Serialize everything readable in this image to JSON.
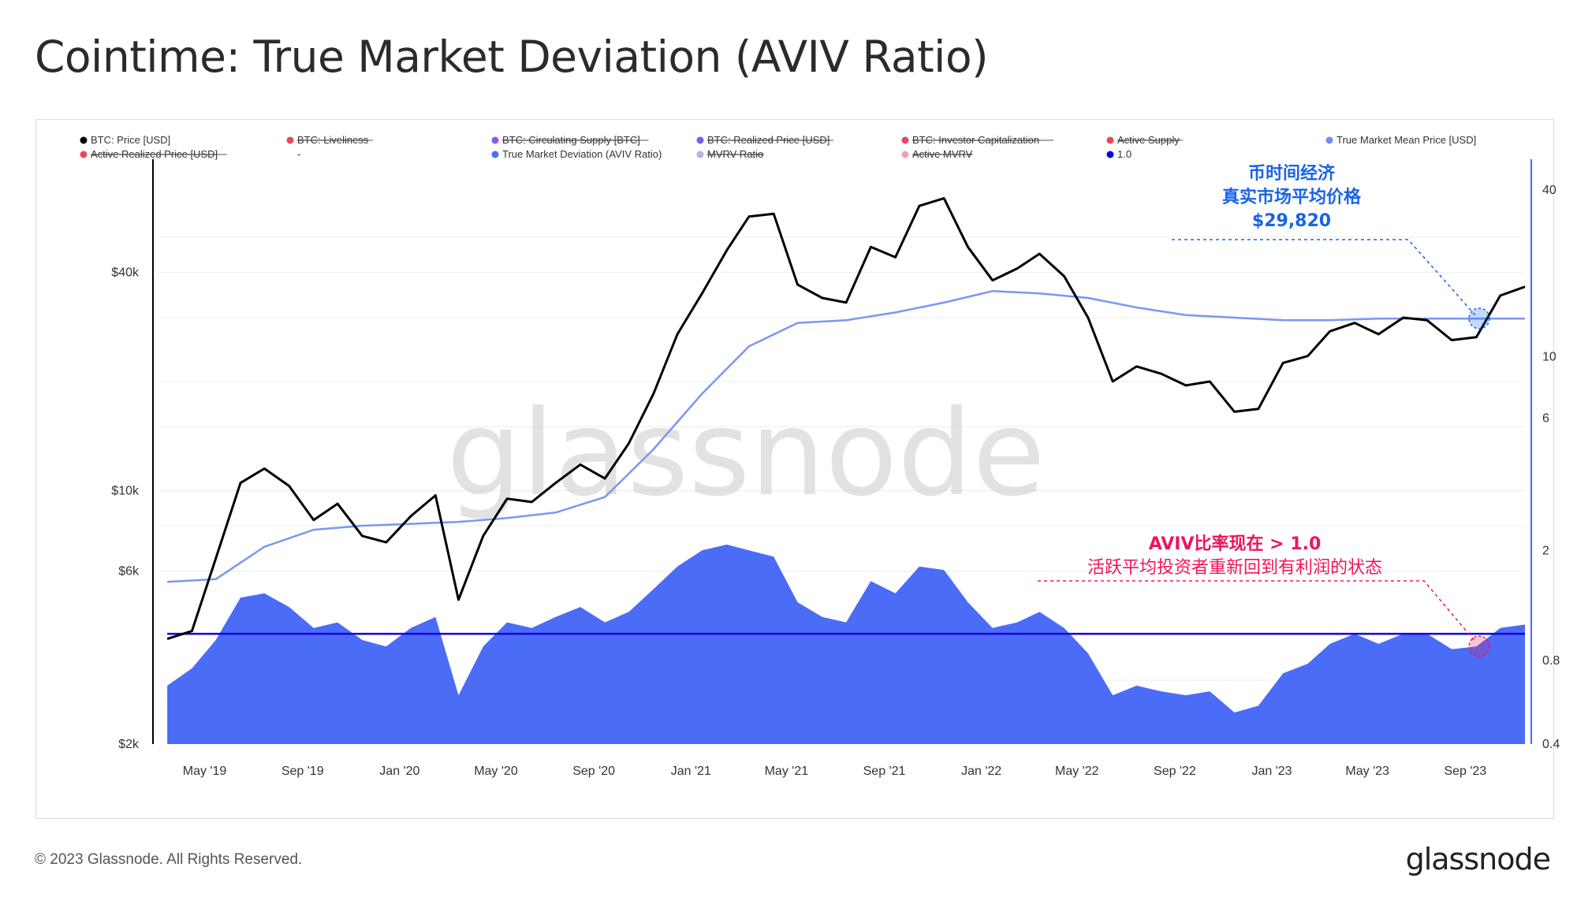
{
  "title": "Cointime: True Market Deviation (AVIV Ratio)",
  "footer": {
    "copyright": "© 2023 Glassnode. All Rights Reserved.",
    "logo": "glassnode"
  },
  "watermark": "glassnode",
  "legend": [
    {
      "label": "BTC: Price [USD]",
      "color": "#000000",
      "struck": false
    },
    {
      "label": "BTC: Liveliness",
      "color": "#e8485c",
      "struck": true
    },
    {
      "label": "BTC: Circulating Supply [BTC]",
      "color": "#8a5cf0",
      "struck": true
    },
    {
      "label": "BTC: Realized Price [USD]",
      "color": "#7a5cf0",
      "struck": true
    },
    {
      "label": "BTC: Investor Capitalization",
      "color": "#e8485c",
      "struck": true
    },
    {
      "label": "Active Supply",
      "color": "#e8485c",
      "struck": true
    },
    {
      "label": "True Market Mean Price [USD]",
      "color": "#6f8ff5",
      "struck": false
    },
    {
      "label": "Active Realized Price [USD]",
      "color": "#e8485c",
      "struck": true
    },
    {
      "label": "-",
      "color": "",
      "struck": false
    },
    {
      "label": "True Market Deviation (AVIV Ratio)",
      "color": "#4f6ff5",
      "struck": false
    },
    {
      "label": "MVRV Ratio",
      "color": "#b8b0f0",
      "struck": true
    },
    {
      "label": "Active MVRV",
      "color": "#f0a0b0",
      "struck": true
    },
    {
      "label": "1.0",
      "color": "#0a00e0",
      "struck": false
    }
  ],
  "annotations": {
    "blue": [
      "币时间经济",
      "真实市场平均价格",
      "$29,820"
    ],
    "pink": [
      "AVIV比率现在 > 1.0",
      "活跃平均投资者重新回到有利润的状态"
    ]
  },
  "colors": {
    "price": "#000000",
    "tmmp": "#7b96f5",
    "aviv": "#4a6cf7",
    "one_line": "#1800d8",
    "anno_blue": "#1a63e6",
    "anno_pink": "#f0145a"
  },
  "chart_data": {
    "type": "line",
    "title": "Cointime: True Market Deviation (AVIV Ratio)",
    "x_range": [
      "2019-03-01",
      "2023-11-15"
    ],
    "x_ticks": [
      "May '19",
      "Sep '19",
      "Jan '20",
      "May '20",
      "Sep '20",
      "Jan '21",
      "May '21",
      "Sep '21",
      "Jan '22",
      "May '22",
      "Sep '22",
      "Jan '23",
      "May '23",
      "Sep '23"
    ],
    "y_left": {
      "scale": "log",
      "ticks": [
        "$2k",
        "$6k",
        "$10k",
        "$40k"
      ],
      "range": [
        2000,
        80000
      ]
    },
    "y_right": {
      "scale": "log",
      "ticks": [
        "0.4",
        "0.8",
        "2",
        "6",
        "10",
        "40"
      ],
      "range": [
        0.4,
        50
      ]
    },
    "series": [
      {
        "name": "BTC: Price [USD]",
        "axis": "left",
        "x": [
          "2019-03",
          "2019-04",
          "2019-05",
          "2019-06",
          "2019-07",
          "2019-08",
          "2019-09",
          "2019-10",
          "2019-11",
          "2019-12",
          "2020-01",
          "2020-02",
          "2020-03",
          "2020-04",
          "2020-05",
          "2020-06",
          "2020-07",
          "2020-08",
          "2020-09",
          "2020-10",
          "2020-11",
          "2020-12",
          "2021-01",
          "2021-02",
          "2021-03",
          "2021-04",
          "2021-05",
          "2021-06",
          "2021-07",
          "2021-08",
          "2021-09",
          "2021-10",
          "2021-11",
          "2021-12",
          "2022-01",
          "2022-02",
          "2022-03",
          "2022-04",
          "2022-05",
          "2022-06",
          "2022-07",
          "2022-08",
          "2022-09",
          "2022-10",
          "2022-11",
          "2022-12",
          "2023-01",
          "2023-02",
          "2023-03",
          "2023-04",
          "2023-05",
          "2023-06",
          "2023-07",
          "2023-08",
          "2023-09",
          "2023-10",
          "2023-11"
        ],
        "values": [
          3900,
          4100,
          6500,
          10500,
          11500,
          10300,
          8300,
          9200,
          7500,
          7200,
          8500,
          9700,
          5000,
          7500,
          9500,
          9300,
          10500,
          11800,
          10800,
          13500,
          18500,
          27000,
          35000,
          46000,
          57000,
          58000,
          37000,
          34000,
          33000,
          47000,
          44000,
          61000,
          64000,
          47000,
          38000,
          41000,
          45000,
          39000,
          30000,
          20000,
          22000,
          21000,
          19500,
          20000,
          16500,
          16800,
          22500,
          23500,
          27500,
          29000,
          27000,
          30000,
          29500,
          26000,
          26500,
          34500,
          36500
        ]
      },
      {
        "name": "True Market Mean Price [USD]",
        "axis": "left",
        "x": [
          "2019-03",
          "2019-05",
          "2019-07",
          "2019-09",
          "2019-11",
          "2020-01",
          "2020-03",
          "2020-05",
          "2020-07",
          "2020-09",
          "2020-11",
          "2021-01",
          "2021-03",
          "2021-05",
          "2021-07",
          "2021-09",
          "2021-11",
          "2022-01",
          "2022-03",
          "2022-05",
          "2022-07",
          "2022-09",
          "2022-11",
          "2023-01",
          "2023-03",
          "2023-05",
          "2023-07",
          "2023-09",
          "2023-11"
        ],
        "values": [
          5600,
          5700,
          7000,
          7800,
          8000,
          8100,
          8200,
          8400,
          8700,
          9600,
          13000,
          18500,
          25000,
          29000,
          29500,
          31000,
          33000,
          35500,
          35000,
          34000,
          32000,
          30500,
          30000,
          29500,
          29500,
          29800,
          29800,
          29800,
          29820
        ]
      },
      {
        "name": "True Market Deviation (AVIV Ratio)",
        "axis": "right",
        "x": [
          "2019-03",
          "2019-04",
          "2019-05",
          "2019-06",
          "2019-07",
          "2019-08",
          "2019-09",
          "2019-10",
          "2019-11",
          "2019-12",
          "2020-01",
          "2020-02",
          "2020-03",
          "2020-04",
          "2020-05",
          "2020-06",
          "2020-07",
          "2020-08",
          "2020-09",
          "2020-10",
          "2020-11",
          "2020-12",
          "2021-01",
          "2021-02",
          "2021-03",
          "2021-04",
          "2021-05",
          "2021-06",
          "2021-07",
          "2021-08",
          "2021-09",
          "2021-10",
          "2021-11",
          "2021-12",
          "2022-01",
          "2022-02",
          "2022-03",
          "2022-04",
          "2022-05",
          "2022-06",
          "2022-07",
          "2022-08",
          "2022-09",
          "2022-10",
          "2022-11",
          "2022-12",
          "2023-01",
          "2023-02",
          "2023-03",
          "2023-04",
          "2023-05",
          "2023-06",
          "2023-07",
          "2023-08",
          "2023-09",
          "2023-10",
          "2023-11"
        ],
        "values": [
          0.65,
          0.75,
          0.95,
          1.35,
          1.4,
          1.25,
          1.05,
          1.1,
          0.95,
          0.9,
          1.05,
          1.15,
          0.6,
          0.9,
          1.1,
          1.05,
          1.15,
          1.25,
          1.1,
          1.2,
          1.45,
          1.75,
          2.0,
          2.1,
          2.0,
          1.9,
          1.3,
          1.15,
          1.1,
          1.55,
          1.4,
          1.75,
          1.7,
          1.3,
          1.05,
          1.1,
          1.2,
          1.05,
          0.85,
          0.6,
          0.65,
          0.62,
          0.6,
          0.62,
          0.52,
          0.55,
          0.72,
          0.78,
          0.92,
          1.0,
          0.92,
          1.0,
          1.0,
          0.88,
          0.9,
          1.05,
          1.08
        ]
      },
      {
        "name": "1.0",
        "axis": "right",
        "x": [
          "2019-03",
          "2023-11"
        ],
        "values": [
          1.0,
          1.0
        ]
      }
    ],
    "legend_position": "top",
    "grid": true
  }
}
